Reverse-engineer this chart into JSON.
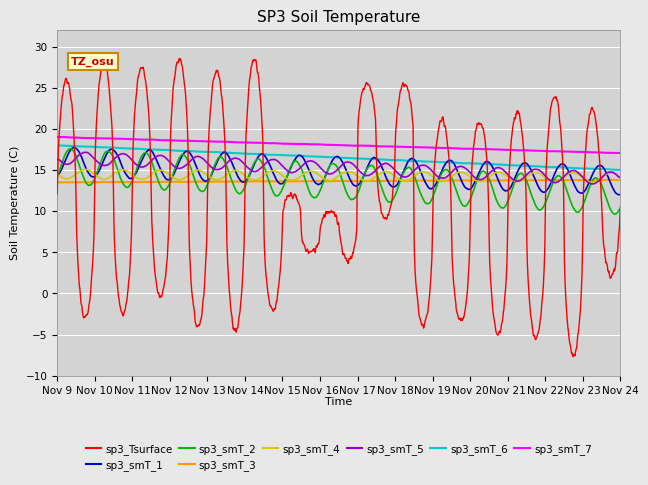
{
  "title": "SP3 Soil Temperature",
  "xlabel": "Time",
  "ylabel": "Soil Temperature (C)",
  "ylim": [
    -10,
    32
  ],
  "background_color": "#e8e8e8",
  "plot_bg_color": "#d3d3d3",
  "tz_label": "TZ_osu",
  "series_colors": {
    "sp3_Tsurface": "#ff0000",
    "sp3_smT_1": "#0000cc",
    "sp3_smT_2": "#00bb00",
    "sp3_smT_3": "#ff9900",
    "sp3_smT_4": "#cccc00",
    "sp3_smT_5": "#9900cc",
    "sp3_smT_6": "#00cccc",
    "sp3_smT_7": "#ff00ff"
  },
  "x_ticks": [
    "Nov 9",
    "Nov 10",
    "Nov 11",
    "Nov 12",
    "Nov 13",
    "Nov 14",
    "Nov 15",
    "Nov 16",
    "Nov 17",
    "Nov 18",
    "Nov 19",
    "Nov 20",
    "Nov 21",
    "Nov 22",
    "Nov 23",
    "Nov 24"
  ],
  "x_tick_positions": [
    0,
    1,
    2,
    3,
    4,
    5,
    6,
    7,
    8,
    9,
    10,
    11,
    12,
    13,
    14,
    15
  ],
  "x_range": [
    0,
    15
  ],
  "yticks": [
    -10,
    -5,
    0,
    5,
    10,
    15,
    20,
    25,
    30
  ]
}
